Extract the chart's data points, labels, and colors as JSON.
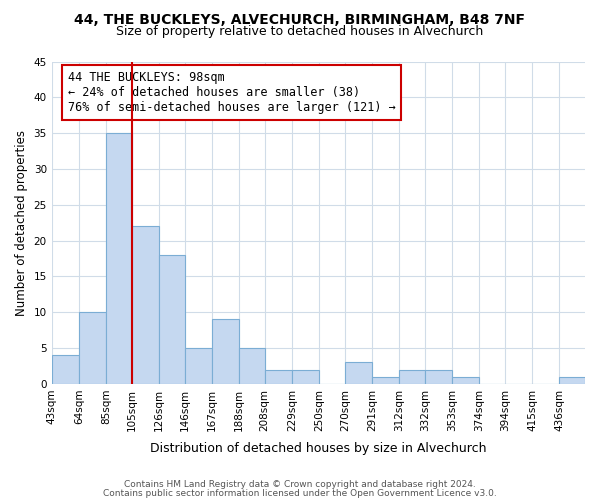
{
  "title1": "44, THE BUCKLEYS, ALVECHURCH, BIRMINGHAM, B48 7NF",
  "title2": "Size of property relative to detached houses in Alvechurch",
  "xlabel": "Distribution of detached houses by size in Alvechurch",
  "ylabel": "Number of detached properties",
  "bin_edges": [
    43,
    64,
    85,
    105,
    126,
    146,
    167,
    188,
    208,
    229,
    250,
    270,
    291,
    312,
    332,
    353,
    374,
    394,
    415,
    436,
    456
  ],
  "bar_heights": [
    4,
    10,
    35,
    22,
    18,
    5,
    9,
    5,
    2,
    2,
    0,
    3,
    1,
    2,
    2,
    1,
    0,
    0,
    0,
    1
  ],
  "ylim": [
    0,
    45
  ],
  "yticks": [
    0,
    5,
    10,
    15,
    20,
    25,
    30,
    35,
    40,
    45
  ],
  "bar_color": "#c5d8f0",
  "bar_edge_color": "#7badd4",
  "redline_x": 98,
  "annotation_title": "44 THE BUCKLEYS: 98sqm",
  "annotation_line1": "← 24% of detached houses are smaller (38)",
  "annotation_line2": "76% of semi-detached houses are larger (121) →",
  "annotation_box_color": "#ffffff",
  "annotation_box_edge": "#cc0000",
  "footer1": "Contains HM Land Registry data © Crown copyright and database right 2024.",
  "footer2": "Contains public sector information licensed under the Open Government Licence v3.0.",
  "background_color": "#ffffff",
  "grid_color": "#d0dce8"
}
